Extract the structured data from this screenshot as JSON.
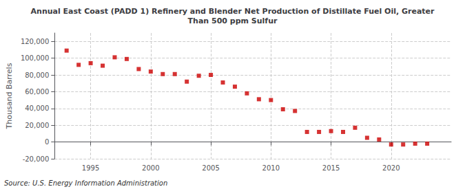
{
  "chart_data": {
    "type": "scatter",
    "title": "Annual East Coast (PADD 1) Refinery and Blender Net Production of Distillate Fuel Oil, Greater\nThan 500 ppm Sulfur",
    "ylabel": "Thousand Barrels",
    "annotations": [
      "Source: U.S. Energy Information Administration"
    ],
    "x": [
      1993,
      1994,
      1995,
      1996,
      1997,
      1998,
      1999,
      2000,
      2001,
      2002,
      2003,
      2004,
      2005,
      2006,
      2007,
      2008,
      2009,
      2010,
      2011,
      2012,
      2013,
      2014,
      2015,
      2016,
      2017,
      2018,
      2019,
      2020,
      2021,
      2022,
      2023
    ],
    "values": [
      109000,
      92000,
      94000,
      91000,
      101000,
      99000,
      87000,
      84000,
      81000,
      81000,
      72000,
      79000,
      80000,
      71000,
      66000,
      58000,
      51000,
      50000,
      39000,
      37000,
      12000,
      12000,
      13000,
      12000,
      17000,
      5000,
      3000,
      -3000,
      -3000,
      -2000,
      -2000
    ],
    "color": "#cc0000",
    "marker": "square",
    "xlim": [
      1992,
      2025
    ],
    "xticks": [
      1995,
      2000,
      2005,
      2010,
      2015,
      2020
    ],
    "ylim": [
      -20000,
      130000
    ],
    "yticks": [
      {
        "value": -20000,
        "label": "-20,000"
      },
      0,
      {
        "value": 20000,
        "label": "20,000"
      },
      {
        "value": 40000,
        "label": "40,000"
      },
      {
        "value": 60000,
        "label": "60,000"
      },
      {
        "value": 80000,
        "label": "80,000"
      },
      {
        "value": 100000,
        "label": "100,000"
      },
      {
        "value": 120000,
        "label": "120,000"
      }
    ],
    "grid": true
  }
}
